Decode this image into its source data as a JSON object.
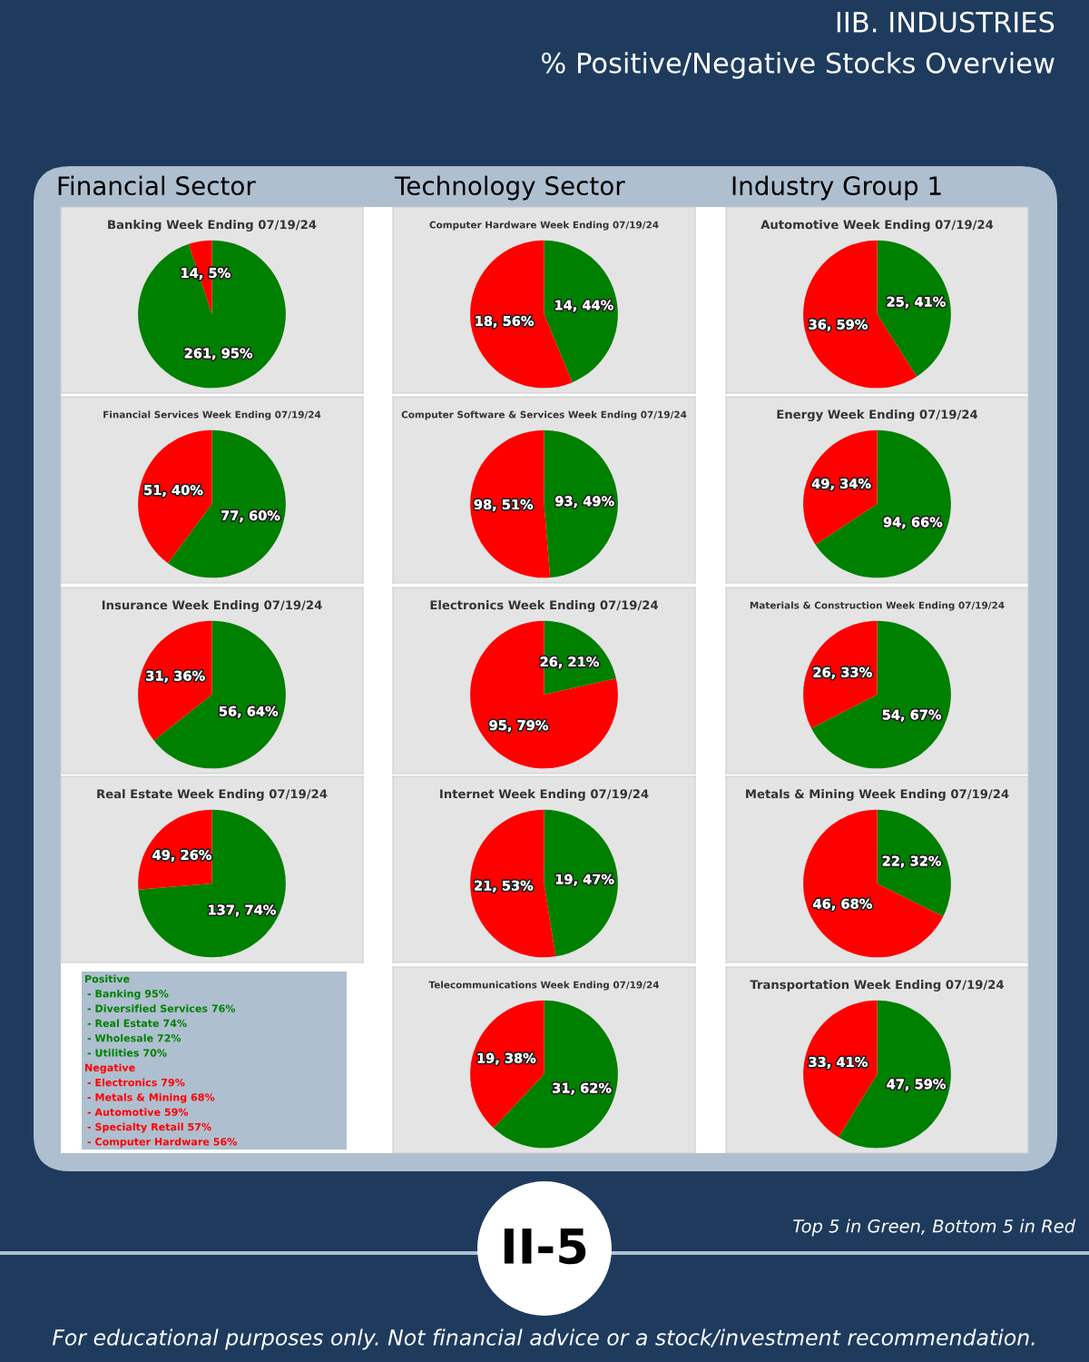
{
  "chart_data": [
    {
      "type": "other",
      "title": "IIB. INDUSTRIES",
      "subtitle": "% Positive/Negative Stocks Overview",
      "annotations": [
        "Financial Sector",
        "Technology Sector",
        "Industry Group 1",
        "II-5",
        "Top 5 in Green, Bottom 5 in Red",
        "For educational purposes only. Not financial advice or a stock/investment recommendation."
      ]
    },
    {
      "type": "pie",
      "title": "Banking Week Ending 07/19/24",
      "categories": [
        null,
        null
      ],
      "values": [
        261,
        14
      ],
      "colors": [
        "#008000",
        "#ff0000"
      ],
      "value_labels": [
        "261, 95%",
        "14, 5%"
      ]
    },
    {
      "type": "pie",
      "title": "Computer Hardware Week Ending 07/19/24",
      "categories": [
        null,
        null
      ],
      "values": [
        14,
        18
      ],
      "colors": [
        "#008000",
        "#ff0000"
      ],
      "value_labels": [
        "14, 44%",
        "18, 56%"
      ]
    },
    {
      "type": "pie",
      "title": "Automotive Week Ending 07/19/24",
      "categories": [
        null,
        null
      ],
      "values": [
        25,
        36
      ],
      "colors": [
        "#008000",
        "#ff0000"
      ],
      "value_labels": [
        "25, 41%",
        "36, 59%"
      ]
    },
    {
      "type": "pie",
      "title": "Financial Services Week Ending 07/19/24",
      "categories": [
        null,
        null
      ],
      "values": [
        77,
        51
      ],
      "colors": [
        "#008000",
        "#ff0000"
      ],
      "value_labels": [
        "77, 60%",
        "51, 40%"
      ]
    },
    {
      "type": "pie",
      "title": "Computer Software & Services Week Ending 07/19/24",
      "categories": [
        null,
        null
      ],
      "values": [
        93,
        98
      ],
      "colors": [
        "#008000",
        "#ff0000"
      ],
      "value_labels": [
        "93, 49%",
        "98, 51%"
      ]
    },
    {
      "type": "pie",
      "title": "Energy Week Ending 07/19/24",
      "categories": [
        null,
        null
      ],
      "values": [
        94,
        49
      ],
      "colors": [
        "#008000",
        "#ff0000"
      ],
      "value_labels": [
        "94, 66%",
        "49, 34%"
      ]
    },
    {
      "type": "pie",
      "title": "Insurance Week Ending 07/19/24",
      "categories": [
        null,
        null
      ],
      "values": [
        56,
        31
      ],
      "colors": [
        "#008000",
        "#ff0000"
      ],
      "value_labels": [
        "56, 64%",
        "31, 36%"
      ]
    },
    {
      "type": "pie",
      "title": "Electronics Week Ending 07/19/24",
      "categories": [
        null,
        null
      ],
      "values": [
        26,
        95
      ],
      "colors": [
        "#008000",
        "#ff0000"
      ],
      "value_labels": [
        "26, 21%",
        "95, 79%"
      ]
    },
    {
      "type": "pie",
      "title": "Materials & Construction Week Ending 07/19/24",
      "categories": [
        null,
        null
      ],
      "values": [
        54,
        26
      ],
      "colors": [
        "#008000",
        "#ff0000"
      ],
      "value_labels": [
        "54, 67%",
        "26, 33%"
      ]
    },
    {
      "type": "pie",
      "title": "Real Estate Week Ending 07/19/24",
      "categories": [
        null,
        null
      ],
      "values": [
        137,
        49
      ],
      "colors": [
        "#008000",
        "#ff0000"
      ],
      "value_labels": [
        "137, 74%",
        "49, 26%"
      ]
    },
    {
      "type": "pie",
      "title": "Internet Week Ending 07/19/24",
      "categories": [
        null,
        null
      ],
      "values": [
        19,
        21
      ],
      "colors": [
        "#008000",
        "#ff0000"
      ],
      "value_labels": [
        "19, 47%",
        "21, 53%"
      ]
    },
    {
      "type": "pie",
      "title": "Metals & Mining Week Ending 07/19/24",
      "categories": [
        null,
        null
      ],
      "values": [
        22,
        46
      ],
      "colors": [
        "#008000",
        "#ff0000"
      ],
      "value_labels": [
        "22, 32%",
        "46, 68%"
      ]
    },
    {
      "type": "other",
      "title": "Positive",
      "color": "#008000",
      "annotations": [
        "- Banking 95%",
        "- Diversified Services 76%",
        "- Real Estate 74%",
        "- Wholesale 72%",
        "- Utilities 70%"
      ]
    },
    {
      "type": "other",
      "title": "Negative",
      "color": "#ff0000",
      "annotations": [
        "- Electronics 79%",
        "- Metals & Mining 68%",
        "- Automotive 59%",
        "- Specialty Retail 57%",
        "- Computer Hardware 56%"
      ]
    },
    {
      "type": "pie",
      "title": "Telecommunications Week Ending 07/19/24",
      "categories": [
        null,
        null
      ],
      "values": [
        31,
        19
      ],
      "colors": [
        "#008000",
        "#ff0000"
      ],
      "value_labels": [
        "31, 62%",
        "19, 38%"
      ]
    },
    {
      "type": "pie",
      "title": "Transportation Week Ending 07/19/24",
      "categories": [
        null,
        null
      ],
      "values": [
        47,
        33
      ],
      "colors": [
        "#008000",
        "#ff0000"
      ],
      "value_labels": [
        "47, 59%",
        "33, 41%"
      ]
    }
  ]
}
